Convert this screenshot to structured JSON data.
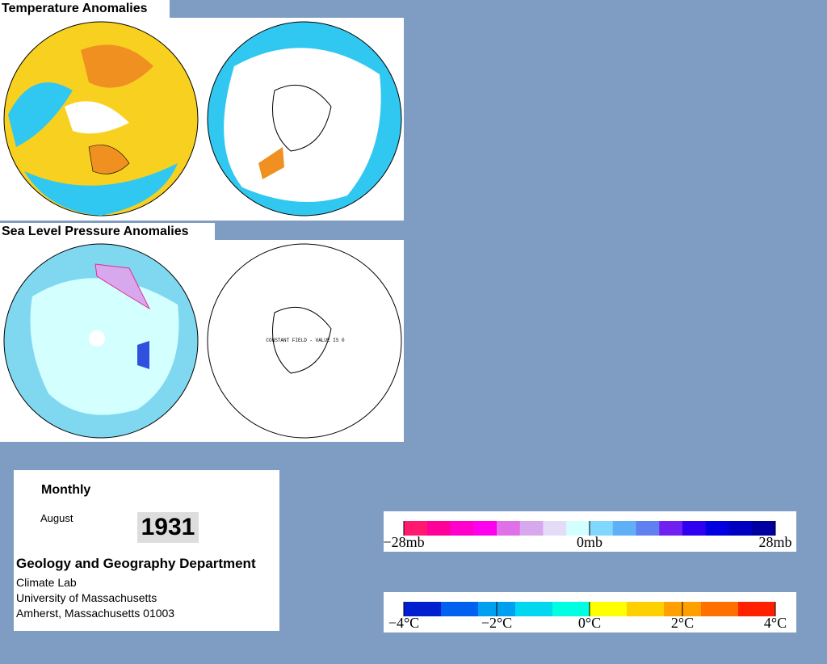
{
  "panels": [
    {
      "title": "Temperature Anomalies"
    },
    {
      "title": "Sea Level Pressure Anomalies",
      "note": "CONSTANT FIELD - VALUE IS 0"
    }
  ],
  "info": {
    "period": "Monthly",
    "month": "August",
    "year": "1931",
    "department": "Geology and Geography Department",
    "lines": [
      "Climate Lab",
      "University of Massachusetts",
      "Amherst, Massachusetts 01003"
    ]
  },
  "legends": [
    {
      "labels": [
        "−28mb",
        "0mb",
        "28mb"
      ],
      "colors": [
        "#ff1a70",
        "#ff0099",
        "#ff00cc",
        "#ff00ee",
        "#e070e8",
        "#d8a8ee",
        "#e4dcf6",
        "#d4ffff",
        "#80d8ff",
        "#60b0f8",
        "#6080f0",
        "#7020f0",
        "#3000f0",
        "#0000e0",
        "#0000c0",
        "#0000a0"
      ]
    },
    {
      "labels": [
        "−4°C",
        "−2°C",
        "0°C",
        "2°C",
        "4°C"
      ],
      "colors": [
        "#0020d0",
        "#0060f0",
        "#00a0f0",
        "#00d8f0",
        "#00ffe0",
        "#ffff00",
        "#ffd000",
        "#ffa000",
        "#ff7000",
        "#ff2000"
      ]
    }
  ]
}
